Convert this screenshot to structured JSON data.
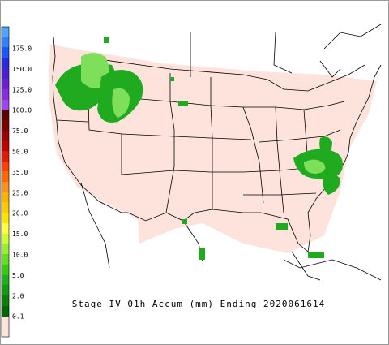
{
  "legend": {
    "labels": [
      "175.0",
      "150.0",
      "125.0",
      "100.0",
      "75.0",
      "50.0",
      "35.0",
      "25.0",
      "20.0",
      "15.0",
      "10.0",
      "5.0",
      "2.0",
      "0.1"
    ]
  },
  "caption": "Stage IV 01h Accum (mm) Ending 2020061614"
}
